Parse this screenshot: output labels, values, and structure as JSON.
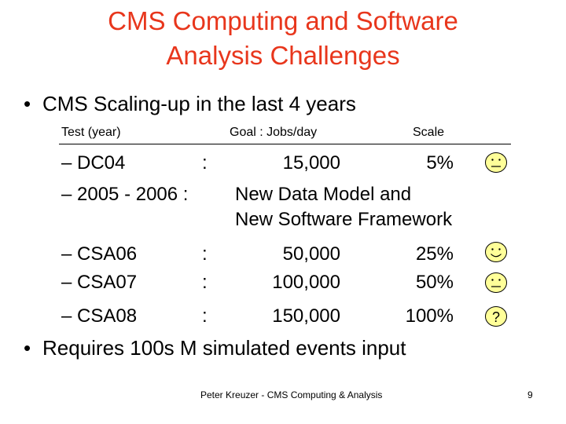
{
  "title_line1": "CMS Computing and Software",
  "title_line2": "Analysis Challenges",
  "bullet1": "CMS Scaling-up in the last 4 years",
  "header": {
    "test": "Test (year)",
    "goal": "Goal : Jobs/day",
    "scale": "Scale"
  },
  "rows": [
    {
      "test": "– DC04",
      "sep": ":",
      "goal": "15,000",
      "scale": "5%",
      "icon": "neutral-smiley-icon"
    },
    {
      "test": "– 2005 - 2006 :",
      "goal_line1": "New Data Model and",
      "goal_line2": "New Software Framework"
    },
    {
      "test": "– CSA06",
      "sep": ":",
      "goal": "50,000",
      "scale": "25%",
      "icon": "happy-smiley-icon"
    },
    {
      "test": "– CSA07",
      "sep": ":",
      "goal": "100,000",
      "scale": "50%",
      "icon": "neutral-smiley-icon"
    },
    {
      "test": "– CSA08",
      "sep": ":",
      "goal": "150,000",
      "scale": "100%",
      "icon": "question-icon",
      "icon_text": "?"
    }
  ],
  "bullet2": "Requires 100s M simulated events input",
  "footer": {
    "author": "Peter Kreuzer - CMS Computing & Analysis",
    "page": "9"
  },
  "colors": {
    "title": "#e8361c",
    "face_fill": "#ffff99"
  }
}
